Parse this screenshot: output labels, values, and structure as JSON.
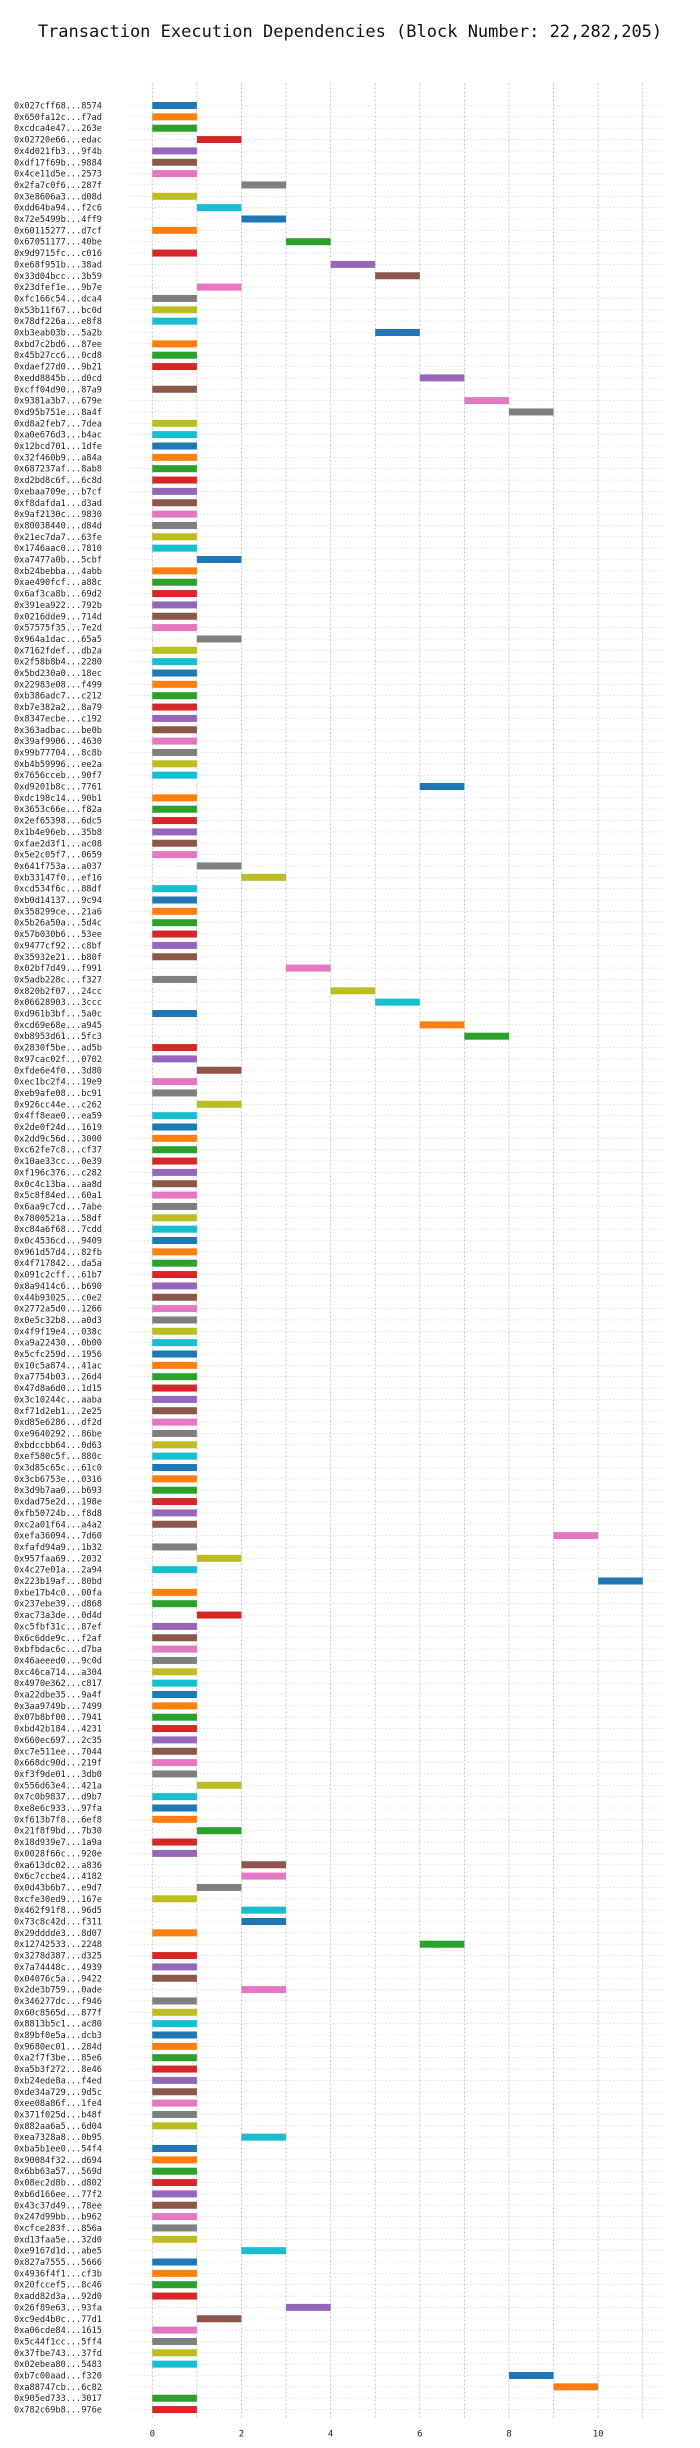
{
  "chart_data": {
    "type": "bar",
    "orientation": "horizontal",
    "title": "Transaction Execution Dependencies (Block Number: 22,282,205)",
    "xlabel": "",
    "ylabel": "",
    "xlim": [
      -0.5,
      11.5
    ],
    "xticks": [
      0,
      2,
      4,
      6,
      8,
      10
    ],
    "grid": true,
    "palette": [
      "#1f77b4",
      "#ff7f0e",
      "#2ca02c",
      "#d62728",
      "#9467bd",
      "#8c564b",
      "#e377c2",
      "#7f7f7f",
      "#bcbd22",
      "#17becf"
    ],
    "transactions": [
      {
        "label": "0x027cff68...8574",
        "start": 0
      },
      {
        "label": "0x650fa12c...f7ad",
        "start": 0
      },
      {
        "label": "0xcdca4e47...263e",
        "start": 0
      },
      {
        "label": "0x02720e66...edac",
        "start": 1
      },
      {
        "label": "0x4d021fb3...9f4b",
        "start": 0
      },
      {
        "label": "0xdf17f69b...9884",
        "start": 0
      },
      {
        "label": "0x4ce11d5e...2573",
        "start": 0
      },
      {
        "label": "0x2fa7c0f6...287f",
        "start": 2
      },
      {
        "label": "0x3e8606a3...d08d",
        "start": 0
      },
      {
        "label": "0xdd64ba94...f2c6",
        "start": 1
      },
      {
        "label": "0x72e5499b...4ff9",
        "start": 2
      },
      {
        "label": "0x60115277...d7cf",
        "start": 0
      },
      {
        "label": "0x67051177...40be",
        "start": 3
      },
      {
        "label": "0x9d9715fc...c016",
        "start": 0
      },
      {
        "label": "0xe68f951b...38ad",
        "start": 4
      },
      {
        "label": "0x33d04bcc...3b59",
        "start": 5
      },
      {
        "label": "0x23dfef1e...9b7e",
        "start": 1
      },
      {
        "label": "0xfc166c54...dca4",
        "start": 0
      },
      {
        "label": "0x53b11f67...bc0d",
        "start": 0
      },
      {
        "label": "0x78df226a...e8f8",
        "start": 0
      },
      {
        "label": "0xb3eab03b...5a2b",
        "start": 5
      },
      {
        "label": "0xbd7c2bd6...87ee",
        "start": 0
      },
      {
        "label": "0x45b27cc6...0cd8",
        "start": 0
      },
      {
        "label": "0xdaef27d0...9b21",
        "start": 0
      },
      {
        "label": "0xedd8845b...d0cd",
        "start": 6
      },
      {
        "label": "0xcff04d90...87a9",
        "start": 0
      },
      {
        "label": "0x9381a3b7...679e",
        "start": 7
      },
      {
        "label": "0xd95b751e...8a4f",
        "start": 8
      },
      {
        "label": "0xd8a2feb7...7dea",
        "start": 0
      },
      {
        "label": "0xa0e676d3...b4ac",
        "start": 0
      },
      {
        "label": "0x12bcd701...1dfe",
        "start": 0
      },
      {
        "label": "0x32f460b9...a84a",
        "start": 0
      },
      {
        "label": "0x687237af...8ab8",
        "start": 0
      },
      {
        "label": "0xd2bd8c6f...6c8d",
        "start": 0
      },
      {
        "label": "0xebaa709e...b7cf",
        "start": 0
      },
      {
        "label": "0xf8dafda1...d3ad",
        "start": 0
      },
      {
        "label": "0x9af2130c...9830",
        "start": 0
      },
      {
        "label": "0x80038440...d84d",
        "start": 0
      },
      {
        "label": "0x21ec7da7...63fe",
        "start": 0
      },
      {
        "label": "0x1746aac0...7810",
        "start": 0
      },
      {
        "label": "0xa7477a0b...5cbf",
        "start": 1
      },
      {
        "label": "0xb24bebba...4abb",
        "start": 0
      },
      {
        "label": "0xae490fcf...a88c",
        "start": 0
      },
      {
        "label": "0x6af3ca8b...69d2",
        "start": 0
      },
      {
        "label": "0x391ea922...792b",
        "start": 0
      },
      {
        "label": "0x0216dde9...714d",
        "start": 0
      },
      {
        "label": "0x57575f35...7e2d",
        "start": 0
      },
      {
        "label": "0x964a1dac...65a5",
        "start": 1
      },
      {
        "label": "0x7162fdef...db2a",
        "start": 0
      },
      {
        "label": "0x2f58b8b4...2280",
        "start": 0
      },
      {
        "label": "0x5bd230a0...18ec",
        "start": 0
      },
      {
        "label": "0x22983e08...f499",
        "start": 0
      },
      {
        "label": "0xb386adc7...c212",
        "start": 0
      },
      {
        "label": "0xb7e382a2...8a79",
        "start": 0
      },
      {
        "label": "0x8347ecbe...c192",
        "start": 0
      },
      {
        "label": "0x363adbac...be0b",
        "start": 0
      },
      {
        "label": "0x39af9906...4630",
        "start": 0
      },
      {
        "label": "0x99b77704...8c8b",
        "start": 0
      },
      {
        "label": "0xb4b59996...ee2a",
        "start": 0
      },
      {
        "label": "0x7656cceb...90f7",
        "start": 0
      },
      {
        "label": "0xd9201b8c...7761",
        "start": 6
      },
      {
        "label": "0xdc198c14...90b1",
        "start": 0
      },
      {
        "label": "0x3653c66e...f82a",
        "start": 0
      },
      {
        "label": "0x2ef65398...6dc5",
        "start": 0
      },
      {
        "label": "0x1b4e96eb...35b8",
        "start": 0
      },
      {
        "label": "0xfae2d3f1...ac08",
        "start": 0
      },
      {
        "label": "0x5e2c05f7...0659",
        "start": 0
      },
      {
        "label": "0x641f753a...a037",
        "start": 1
      },
      {
        "label": "0xb33147f0...ef16",
        "start": 2
      },
      {
        "label": "0xcd534f6c...88df",
        "start": 0
      },
      {
        "label": "0xb0d14137...9c94",
        "start": 0
      },
      {
        "label": "0x358299ce...21a6",
        "start": 0
      },
      {
        "label": "0x5b26a50a...5d4c",
        "start": 0
      },
      {
        "label": "0x57b030b6...53ee",
        "start": 0
      },
      {
        "label": "0x9477cf92...c8bf",
        "start": 0
      },
      {
        "label": "0x35932e21...b80f",
        "start": 0
      },
      {
        "label": "0x02bf7d49...f991",
        "start": 3
      },
      {
        "label": "0x5adb228c...f327",
        "start": 0
      },
      {
        "label": "0x820b2f07...24cc",
        "start": 4
      },
      {
        "label": "0x06628903...3ccc",
        "start": 5
      },
      {
        "label": "0xd961b3bf...5a0c",
        "start": 0
      },
      {
        "label": "0xcd69e68e...a945",
        "start": 6
      },
      {
        "label": "0xb8953d61...5fc3",
        "start": 7
      },
      {
        "label": "0x2830f5be...ad5b",
        "start": 0
      },
      {
        "label": "0x97cac02f...0702",
        "start": 0
      },
      {
        "label": "0xfde6e4f0...3d80",
        "start": 1
      },
      {
        "label": "0xec1bc2f4...19e9",
        "start": 0
      },
      {
        "label": "0xeb9afe08...bc91",
        "start": 0
      },
      {
        "label": "0x926cc44e...c262",
        "start": 1
      },
      {
        "label": "0x4ff8eae0...ea59",
        "start": 0
      },
      {
        "label": "0x2de0f24d...1619",
        "start": 0
      },
      {
        "label": "0x2dd9c56d...3000",
        "start": 0
      },
      {
        "label": "0xc62fe7c8...cf37",
        "start": 0
      },
      {
        "label": "0x10ae33cc...0e39",
        "start": 0
      },
      {
        "label": "0xf196c376...c282",
        "start": 0
      },
      {
        "label": "0x0c4c13ba...aa8d",
        "start": 0
      },
      {
        "label": "0x5c8f84ed...60a1",
        "start": 0
      },
      {
        "label": "0x6aa9c7cd...7abe",
        "start": 0
      },
      {
        "label": "0x7800521a...58df",
        "start": 0
      },
      {
        "label": "0xc84a6f68...7cdd",
        "start": 0
      },
      {
        "label": "0x0c4536cd...9409",
        "start": 0
      },
      {
        "label": "0x961d57d4...82fb",
        "start": 0
      },
      {
        "label": "0x4f717842...da5a",
        "start": 0
      },
      {
        "label": "0x091c2cff...61b7",
        "start": 0
      },
      {
        "label": "0x8a9414c6...b690",
        "start": 0
      },
      {
        "label": "0x44b93025...c0e2",
        "start": 0
      },
      {
        "label": "0x2772a5d0...1266",
        "start": 0
      },
      {
        "label": "0x0e5c32b8...a0d3",
        "start": 0
      },
      {
        "label": "0x4f9f19e4...038c",
        "start": 0
      },
      {
        "label": "0xa9a22430...0b00",
        "start": 0
      },
      {
        "label": "0x5cfc259d...1956",
        "start": 0
      },
      {
        "label": "0x10c5a874...41ac",
        "start": 0
      },
      {
        "label": "0xa7754b03...26d4",
        "start": 0
      },
      {
        "label": "0x47d8a6d0...1d15",
        "start": 0
      },
      {
        "label": "0x3c10244c...aaba",
        "start": 0
      },
      {
        "label": "0xf71d2eb1...2e25",
        "start": 0
      },
      {
        "label": "0xd85e6286...df2d",
        "start": 0
      },
      {
        "label": "0xe9640292...86be",
        "start": 0
      },
      {
        "label": "0xbdccbb64...0d63",
        "start": 0
      },
      {
        "label": "0xef580c5f...880c",
        "start": 0
      },
      {
        "label": "0x3d85c65c...61c0",
        "start": 0
      },
      {
        "label": "0x3cb6753e...0316",
        "start": 0
      },
      {
        "label": "0x3d9b7aa0...b693",
        "start": 0
      },
      {
        "label": "0xdad75e2d...198e",
        "start": 0
      },
      {
        "label": "0xfb50724b...f8d8",
        "start": 0
      },
      {
        "label": "0xc2a01f64...a4a2",
        "start": 0
      },
      {
        "label": "0xefa36094...7d60",
        "start": 9
      },
      {
        "label": "0xfafd94a9...1b32",
        "start": 0
      },
      {
        "label": "0x957faa69...2032",
        "start": 1
      },
      {
        "label": "0x4c27e01a...2a94",
        "start": 0
      },
      {
        "label": "0x223b19af...80bd",
        "start": 10
      },
      {
        "label": "0xbe17b4c0...00fa",
        "start": 0
      },
      {
        "label": "0x237ebe39...d868",
        "start": 0
      },
      {
        "label": "0xac73a3de...0d4d",
        "start": 1
      },
      {
        "label": "0xc5fbf31c...87ef",
        "start": 0
      },
      {
        "label": "0x6c6dde9c...f2af",
        "start": 0
      },
      {
        "label": "0xbfbdac6c...d7ba",
        "start": 0
      },
      {
        "label": "0x46aeeed0...9c0d",
        "start": 0
      },
      {
        "label": "0xc46ca714...a304",
        "start": 0
      },
      {
        "label": "0x4970e362...c817",
        "start": 0
      },
      {
        "label": "0xa22dbe35...9a4f",
        "start": 0
      },
      {
        "label": "0x3aa9749b...7499",
        "start": 0
      },
      {
        "label": "0x07b8bf00...7941",
        "start": 0
      },
      {
        "label": "0xbd42b184...4231",
        "start": 0
      },
      {
        "label": "0x660ec697...2c35",
        "start": 0
      },
      {
        "label": "0xc7e511ee...7044",
        "start": 0
      },
      {
        "label": "0x668dc90d...219f",
        "start": 0
      },
      {
        "label": "0xf3f9de01...3db0",
        "start": 0
      },
      {
        "label": "0x556d63e4...421a",
        "start": 1
      },
      {
        "label": "0x7c0b9837...d9b7",
        "start": 0
      },
      {
        "label": "0xe8e6c933...97fa",
        "start": 0
      },
      {
        "label": "0xf613b7f8...6ef8",
        "start": 0
      },
      {
        "label": "0x21f8f9bd...7b30",
        "start": 1
      },
      {
        "label": "0x18d939e7...1a9a",
        "start": 0
      },
      {
        "label": "0x0028f66c...920e",
        "start": 0
      },
      {
        "label": "0xa613dc02...a836",
        "start": 2
      },
      {
        "label": "0x6c7ccbe4...4182",
        "start": 2
      },
      {
        "label": "0x0d43b6b7...e9d7",
        "start": 1
      },
      {
        "label": "0xcfe30ed9...167e",
        "start": 0
      },
      {
        "label": "0x462f91f8...96d5",
        "start": 2
      },
      {
        "label": "0x73c8c42d...f311",
        "start": 2
      },
      {
        "label": "0x29dddde3...8d07",
        "start": 0
      },
      {
        "label": "0x12742533...2248",
        "start": 6
      },
      {
        "label": "0x3278d387...d325",
        "start": 0
      },
      {
        "label": "0x7a74448c...4939",
        "start": 0
      },
      {
        "label": "0x04076c5a...9422",
        "start": 0
      },
      {
        "label": "0x2de3b759...0ade",
        "start": 2
      },
      {
        "label": "0x346277dc...f946",
        "start": 0
      },
      {
        "label": "0x60c8565d...877f",
        "start": 0
      },
      {
        "label": "0x8813b5c1...ac80",
        "start": 0
      },
      {
        "label": "0x89bf0e5a...dcb3",
        "start": 0
      },
      {
        "label": "0x9680ec01...284d",
        "start": 0
      },
      {
        "label": "0xa2f7f3be...85e6",
        "start": 0
      },
      {
        "label": "0xa5b3f272...8e46",
        "start": 0
      },
      {
        "label": "0xb24ede8a...f4ed",
        "start": 0
      },
      {
        "label": "0xde34a729...9d5c",
        "start": 0
      },
      {
        "label": "0xee08a86f...1fe4",
        "start": 0
      },
      {
        "label": "0x371f025d...b48f",
        "start": 0
      },
      {
        "label": "0x882aa6a5...6d04",
        "start": 0
      },
      {
        "label": "0xea7328a8...0b95",
        "start": 2
      },
      {
        "label": "0xba5b1ee0...54f4",
        "start": 0
      },
      {
        "label": "0x90084f32...d694",
        "start": 0
      },
      {
        "label": "0x6bb63a57...569d",
        "start": 0
      },
      {
        "label": "0x08ec2d8b...d802",
        "start": 0
      },
      {
        "label": "0xb6d166ee...77f2",
        "start": 0
      },
      {
        "label": "0x43c37d49...78ee",
        "start": 0
      },
      {
        "label": "0x247d99bb...b962",
        "start": 0
      },
      {
        "label": "0xcfce283f...856a",
        "start": 0
      },
      {
        "label": "0xd13faa5e...32d0",
        "start": 0
      },
      {
        "label": "0xe9167d1d...abe5",
        "start": 2
      },
      {
        "label": "0x827a7555...5666",
        "start": 0
      },
      {
        "label": "0x4936f4f1...cf3b",
        "start": 0
      },
      {
        "label": "0x20fccef5...8c46",
        "start": 0
      },
      {
        "label": "0xadd82d3a...92d0",
        "start": 0
      },
      {
        "label": "0x26f89e63...93fa",
        "start": 3
      },
      {
        "label": "0xc9ed4b0c...77d1",
        "start": 1
      },
      {
        "label": "0xa06cde84...1615",
        "start": 0
      },
      {
        "label": "0x5c44f1cc...5ff4",
        "start": 0
      },
      {
        "label": "0x37fbe743...37fd",
        "start": 0
      },
      {
        "label": "0x02ebea80...5483",
        "start": 0
      },
      {
        "label": "0xb7c00aad...f320",
        "start": 8
      },
      {
        "label": "0xa88747cb...6c82",
        "start": 9
      },
      {
        "label": "0x905ed733...3017",
        "start": 0
      },
      {
        "label": "0x782c69b8...976e",
        "start": 0
      }
    ]
  }
}
